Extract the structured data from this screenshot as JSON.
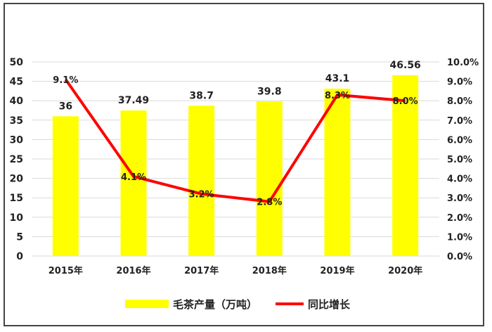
{
  "chart_data": {
    "type": "bar+line",
    "categories": [
      "2015年",
      "2016年",
      "2017年",
      "2018年",
      "2019年",
      "2020年"
    ],
    "series": [
      {
        "name": "毛茶产量（万吨）",
        "type": "bar",
        "axis": "left",
        "values": [
          36,
          37.49,
          38.7,
          39.8,
          43.1,
          46.56
        ],
        "labels": [
          "36",
          "37.49",
          "38.7",
          "39.8",
          "43.1",
          "46.56"
        ],
        "color": "#ffff00"
      },
      {
        "name": "同比增长",
        "type": "line",
        "axis": "right",
        "values": [
          9.1,
          4.1,
          3.2,
          2.8,
          8.3,
          8.0
        ],
        "labels": [
          "9.1%",
          "4.1%",
          "3.2%",
          "2.8%",
          "8.3%",
          "8.0%"
        ],
        "color": "#ff0000"
      }
    ],
    "y_left": {
      "min": 0,
      "max": 50,
      "step": 5,
      "ticks": [
        "0",
        "5",
        "10",
        "15",
        "20",
        "25",
        "30",
        "35",
        "40",
        "45",
        "50"
      ]
    },
    "y_right": {
      "min": 0,
      "max": 10,
      "step": 1,
      "ticks": [
        "0.0%",
        "1.0%",
        "2.0%",
        "3.0%",
        "4.0%",
        "5.0%",
        "6.0%",
        "7.0%",
        "8.0%",
        "9.0%",
        "10.0%"
      ]
    },
    "grid": true,
    "legend_position": "bottom",
    "title": "",
    "xlabel": "",
    "ylabel": ""
  }
}
